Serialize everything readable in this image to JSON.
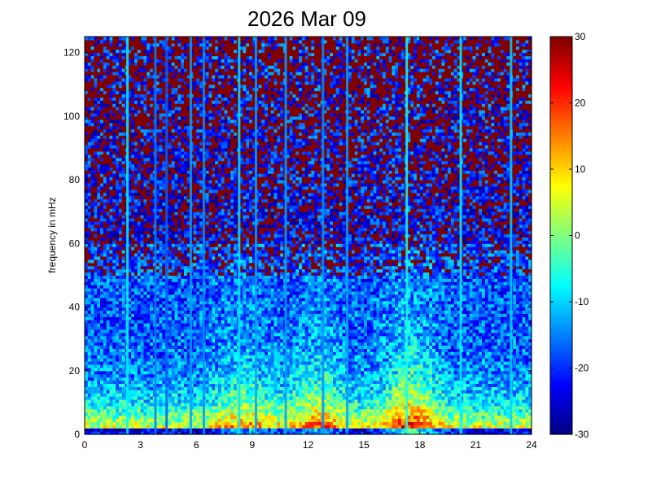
{
  "chart_data": {
    "type": "heatmap",
    "title": "2026 Mar 09",
    "xlabel": "",
    "ylabel": "frequency in mHz",
    "xlim": [
      0,
      24
    ],
    "ylim": [
      0,
      125
    ],
    "xticks": [
      0,
      3,
      6,
      9,
      12,
      15,
      18,
      21,
      24
    ],
    "yticks": [
      0,
      20,
      40,
      60,
      80,
      100,
      120
    ],
    "colorbar": {
      "colormap": "jet",
      "clim": [
        -30,
        30
      ],
      "ticks": [
        -30,
        -20,
        -10,
        0,
        10,
        20,
        30
      ]
    },
    "grid": false,
    "n_time_bins": 144,
    "n_freq_bins": 125,
    "vertical_bands": [
      {
        "time": 2.3,
        "level": -8
      },
      {
        "time": 3.8,
        "level": -15
      },
      {
        "time": 4.4,
        "level": -17
      },
      {
        "time": 5.7,
        "level": -13
      },
      {
        "time": 6.4,
        "level": -14
      },
      {
        "time": 8.3,
        "level": -9
      },
      {
        "time": 9.2,
        "level": -13
      },
      {
        "time": 10.8,
        "level": -13
      },
      {
        "time": 12.8,
        "level": -14
      },
      {
        "time": 14.1,
        "level": -13
      },
      {
        "time": 17.3,
        "level": -6
      },
      {
        "time": 20.2,
        "level": -8
      },
      {
        "time": 22.9,
        "level": -10
      }
    ],
    "activity_peaks": [
      {
        "time": 8.5,
        "level": 7
      },
      {
        "time": 12.5,
        "level": 9
      },
      {
        "time": 17.5,
        "level": 15
      }
    ]
  }
}
